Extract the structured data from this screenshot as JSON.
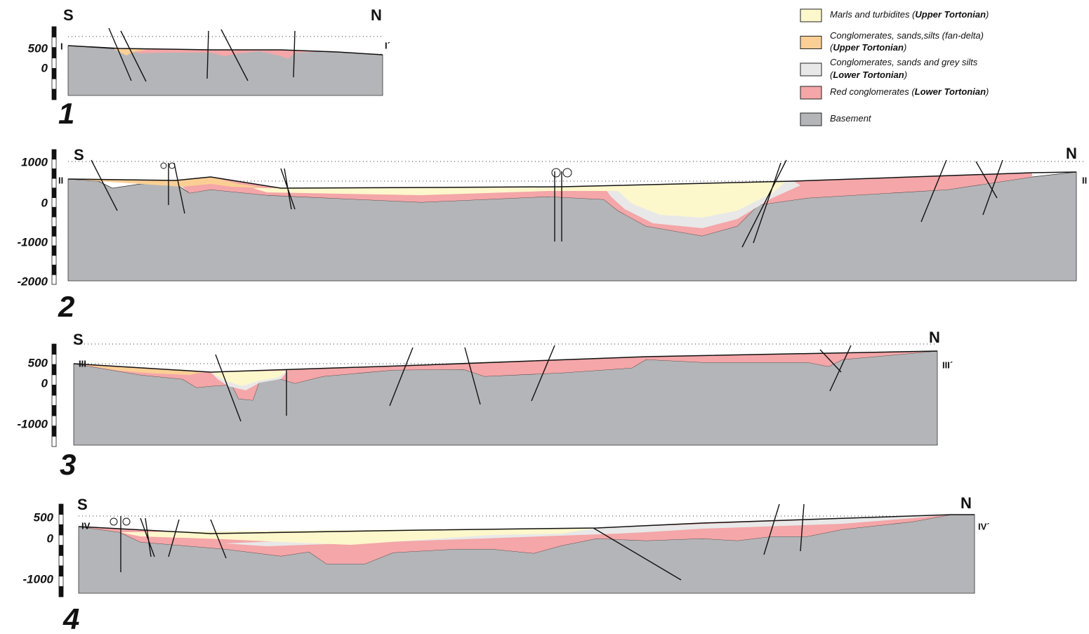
{
  "legend": [
    {
      "color": "#fdf7cc",
      "lines": [
        [
          "Marls and turbidites (",
          "Upper Tortonian",
          ")"
        ]
      ]
    },
    {
      "color": "#fbcf94",
      "lines": [
        [
          "Conglomerates, sands,silts (fan-delta)"
        ],
        [
          "(",
          "Upper Tortonian",
          ")"
        ]
      ]
    },
    {
      "color": "#e8e8e8",
      "lines": [
        [
          "Conglomerates, sands and grey silts"
        ],
        [
          "(",
          "Lower Tortonian",
          ")"
        ]
      ]
    },
    {
      "color": "#f4a6a8",
      "lines": [
        [
          "Red conglomerates (",
          "Lower Tortonian",
          ")"
        ]
      ]
    },
    {
      "color": "#b4b5b8",
      "lines": [
        [
          "Basement"
        ]
      ]
    }
  ],
  "sections": [
    {
      "number": "1",
      "south": "S",
      "north": "N",
      "start": "I",
      "end": "I´",
      "depths": [
        "500",
        "0"
      ]
    },
    {
      "number": "2",
      "south": "S",
      "north": "N",
      "start": "II",
      "end": "II",
      "depths": [
        "1000",
        "0",
        "-1000",
        "-2000"
      ]
    },
    {
      "number": "3",
      "south": "S",
      "north": "N",
      "start": "III",
      "end": "III´",
      "depths": [
        "500",
        "0",
        "-1000"
      ]
    },
    {
      "number": "4",
      "south": "S",
      "north": "N",
      "start": "IV",
      "end": "IV´",
      "depths": [
        "500",
        "0",
        "-1000"
      ]
    }
  ]
}
